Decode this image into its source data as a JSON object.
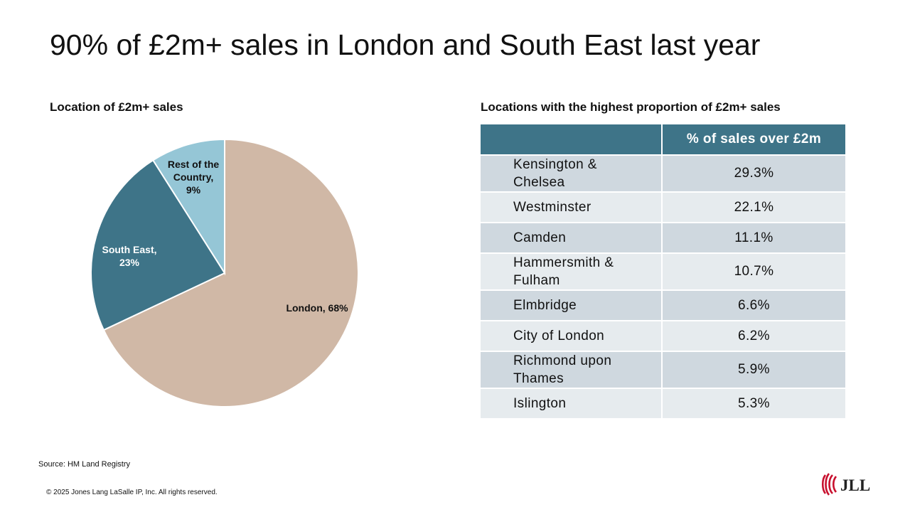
{
  "slide": {
    "title": "90% of £2m+ sales in London and South East last year",
    "source": "Source: HM Land Registry",
    "copyright": "© 2025 Jones Lang LaSalle IP, Inc. All rights reserved.",
    "logo_text": "JLL"
  },
  "chart_data": {
    "type": "pie",
    "title": "Location of £2m+ sales",
    "slices": [
      {
        "label": "London, 68%",
        "value": 68,
        "color": "#d0b8a6"
      },
      {
        "label": "South East, 23%",
        "value": 23,
        "color": "#3e7488"
      },
      {
        "label": "Rest of the Country, 9%",
        "value": 9,
        "color": "#95c6d6"
      }
    ]
  },
  "table": {
    "title": "Locations with the highest proportion of £2m+ sales",
    "header_col1": "",
    "header_col2": "% of sales over £2m",
    "rows": [
      {
        "location": "Kensington & Chelsea",
        "value": "29.3%"
      },
      {
        "location": "Westminster",
        "value": "22.1%"
      },
      {
        "location": "Camden",
        "value": "11.1%"
      },
      {
        "location": "Hammersmith & Fulham",
        "value": "10.7%"
      },
      {
        "location": "Elmbridge",
        "value": "6.6%"
      },
      {
        "location": "City of London",
        "value": "6.2%"
      },
      {
        "location": "Richmond upon Thames",
        "value": "5.9%"
      },
      {
        "location": "Islington",
        "value": "5.3%"
      }
    ]
  },
  "colors": {
    "header_bg": "#3e7488",
    "row_dark": "#cfd8df",
    "row_light": "#e6ebee",
    "logo_red": "#c8102e"
  }
}
